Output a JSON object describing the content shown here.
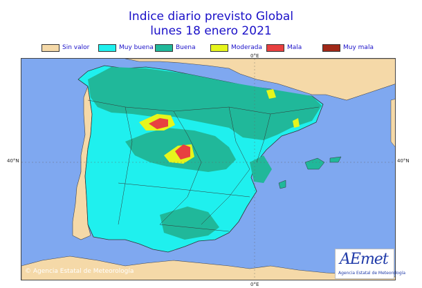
{
  "title": {
    "line1": "Indice diario previsto Global",
    "line2": "lunes 18 enero 2021"
  },
  "legend": [
    {
      "label": "Sin valor",
      "color": "#f5d9a8"
    },
    {
      "label": "Muy buena",
      "color": "#1ff0ee"
    },
    {
      "label": "Buena",
      "color": "#20b89a"
    },
    {
      "label": "Moderada",
      "color": "#e6f51c"
    },
    {
      "label": "Mala",
      "color": "#e84040"
    },
    {
      "label": "Muy mala",
      "color": "#a02818"
    }
  ],
  "axis": {
    "top_lon": "0°E",
    "bottom_lon": "0°E",
    "left_lat": "40°N",
    "right_lat": "40°N"
  },
  "credit": "© Agencia Estatal de Meteorología",
  "logo": {
    "name": "AEmet",
    "subtitle": "Agencia Estatal de Meteorología"
  },
  "colors": {
    "sea": "#7fa8f0",
    "land_other": "#f5d9a8"
  }
}
